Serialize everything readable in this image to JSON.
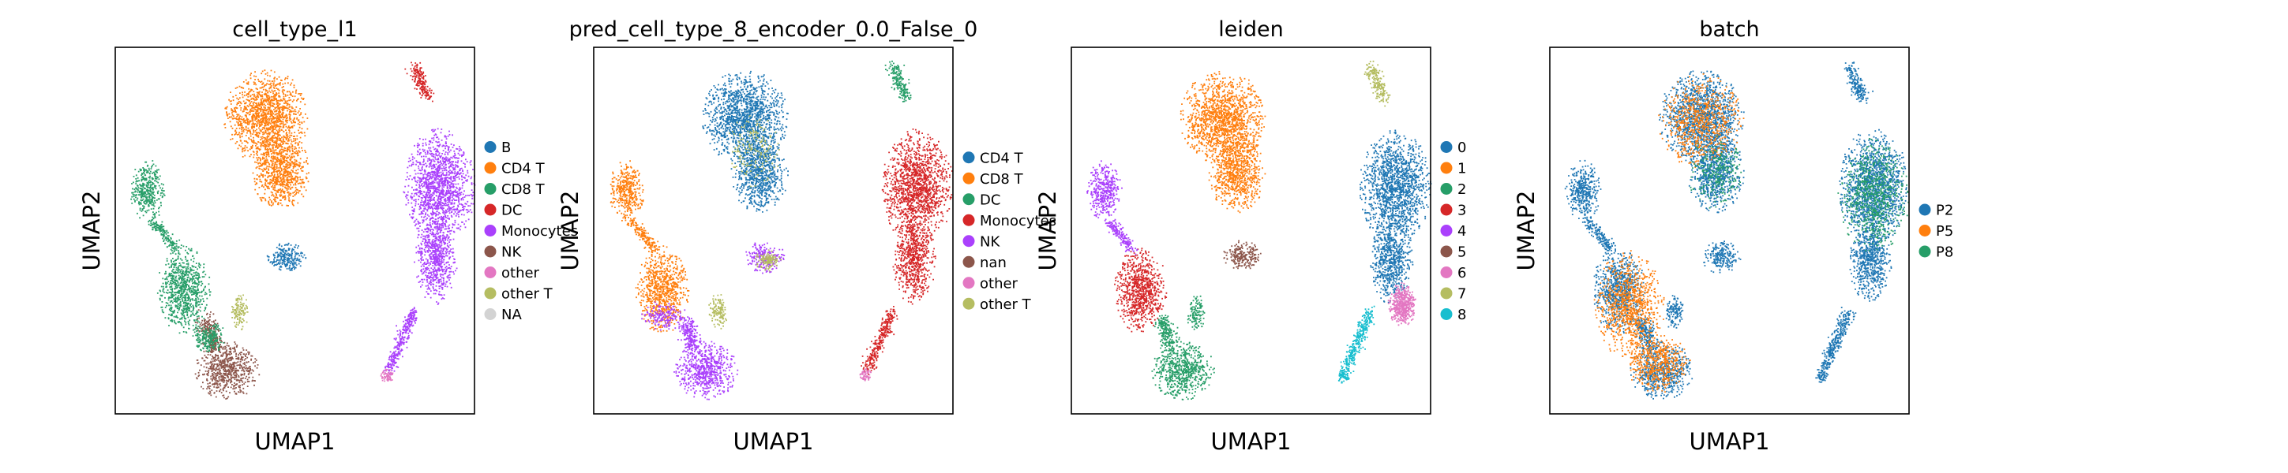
{
  "chart_data": [
    {
      "type": "scatter",
      "title": "cell_type_l1",
      "xlabel": "UMAP1",
      "ylabel": "UMAP2",
      "legend_placement": "right",
      "legend": [
        {
          "label": "B",
          "color": "#1f77b4"
        },
        {
          "label": "CD4 T",
          "color": "#ff7f0e"
        },
        {
          "label": "CD8 T",
          "color": "#279e68"
        },
        {
          "label": "DC",
          "color": "#d62728"
        },
        {
          "label": "Monocytes",
          "color": "#aa40fc"
        },
        {
          "label": "NK",
          "color": "#8c564b"
        },
        {
          "label": "other",
          "color": "#e377c2"
        },
        {
          "label": "other T",
          "color": "#b5bd61"
        },
        {
          "label": "NA",
          "color": "#d3d3d3"
        }
      ]
    },
    {
      "type": "scatter",
      "title": "pred_cell_type_8_encoder_0.0_False_0",
      "xlabel": "UMAP1",
      "ylabel": "UMAP2",
      "legend_placement": "right",
      "legend": [
        {
          "label": "CD4 T",
          "color": "#1f77b4"
        },
        {
          "label": "CD8 T",
          "color": "#ff7f0e"
        },
        {
          "label": "DC",
          "color": "#279e68"
        },
        {
          "label": "Monocytes",
          "color": "#d62728"
        },
        {
          "label": "NK",
          "color": "#aa40fc"
        },
        {
          "label": "nan",
          "color": "#8c564b"
        },
        {
          "label": "other",
          "color": "#e377c2"
        },
        {
          "label": "other T",
          "color": "#b5bd61"
        }
      ]
    },
    {
      "type": "scatter",
      "title": "leiden",
      "xlabel": "UMAP1",
      "ylabel": "UMAP2",
      "legend_placement": "right",
      "legend": [
        {
          "label": "0",
          "color": "#1f77b4"
        },
        {
          "label": "1",
          "color": "#ff7f0e"
        },
        {
          "label": "2",
          "color": "#279e68"
        },
        {
          "label": "3",
          "color": "#d62728"
        },
        {
          "label": "4",
          "color": "#aa40fc"
        },
        {
          "label": "5",
          "color": "#8c564b"
        },
        {
          "label": "6",
          "color": "#e377c2"
        },
        {
          "label": "7",
          "color": "#b5bd61"
        },
        {
          "label": "8",
          "color": "#17becf"
        }
      ]
    },
    {
      "type": "scatter",
      "title": "batch",
      "xlabel": "UMAP1",
      "ylabel": "UMAP2",
      "legend_placement": "right",
      "legend": [
        {
          "label": "P2",
          "color": "#1f77b4"
        },
        {
          "label": "P5",
          "color": "#ff7f0e"
        },
        {
          "label": "P8",
          "color": "#279e68"
        }
      ]
    }
  ]
}
